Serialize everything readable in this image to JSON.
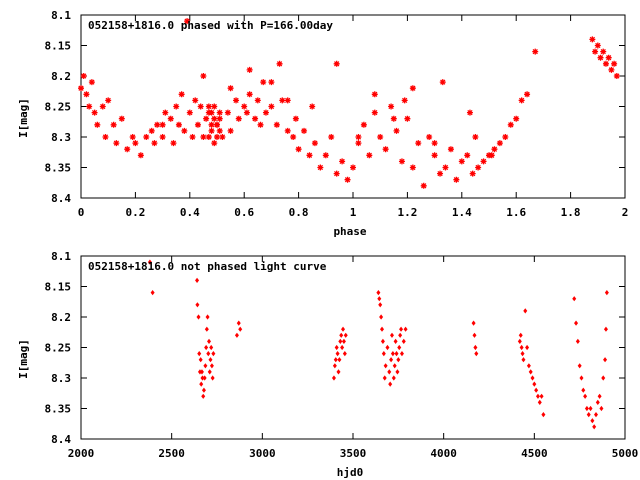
{
  "colors": {
    "marker": "#ff0000",
    "axis": "#000000",
    "background": "#ffffff"
  },
  "chart_data": [
    {
      "type": "scatter",
      "title": "052158+1816.0 phased with P=166.00day",
      "xlabel": "phase",
      "ylabel": "I[mag]",
      "xlim": [
        0,
        2
      ],
      "ylim": [
        8.1,
        8.4
      ],
      "y_inverted": true,
      "marker": "star",
      "xticks": [
        "0",
        "0.2",
        "0.4",
        "0.6",
        "0.8",
        "1",
        "1.2",
        "1.4",
        "1.6",
        "1.8",
        "2"
      ],
      "xtick_values": [
        0,
        0.2,
        0.4,
        0.6,
        0.8,
        1.0,
        1.2,
        1.4,
        1.6,
        1.8,
        2.0
      ],
      "yticks": [
        "8.1",
        "8.15",
        "8.2",
        "8.25",
        "8.3",
        "8.35",
        "8.4"
      ],
      "ytick_values": [
        8.1,
        8.15,
        8.2,
        8.25,
        8.3,
        8.35,
        8.4
      ],
      "x": [
        0.0,
        0.01,
        0.02,
        0.03,
        0.04,
        0.05,
        0.06,
        0.08,
        0.09,
        0.1,
        0.12,
        0.13,
        0.15,
        0.17,
        0.19,
        0.2,
        0.22,
        0.24,
        0.26,
        0.27,
        0.28,
        0.3,
        0.31,
        0.33,
        0.34,
        0.35,
        0.36,
        0.37,
        0.38,
        0.39,
        0.4,
        0.41,
        0.42,
        0.43,
        0.44,
        0.45,
        0.46,
        0.47,
        0.48,
        0.49,
        0.5,
        0.51,
        0.52,
        0.54,
        0.55,
        0.57,
        0.58,
        0.6,
        0.61,
        0.62,
        0.64,
        0.65,
        0.66,
        0.68,
        0.7,
        0.72,
        0.74,
        0.76,
        0.78,
        0.79,
        0.8,
        0.82,
        0.84,
        0.86,
        0.88,
        0.9,
        0.92,
        0.94,
        0.96,
        0.98,
        1.0,
        1.02,
        1.04,
        1.06,
        1.08,
        1.1,
        1.12,
        1.14,
        1.16,
        1.18,
        1.2,
        1.22,
        1.24,
        1.26,
        1.28,
        1.3,
        1.32,
        1.34,
        1.36,
        1.38,
        1.4,
        1.42,
        1.44,
        1.46,
        1.48,
        1.5,
        1.52,
        1.54,
        1.56,
        1.58,
        1.6,
        1.62,
        1.64,
        1.67,
        1.88,
        1.89,
        1.9,
        1.91,
        1.92,
        1.93,
        1.94,
        1.95,
        1.96,
        1.97,
        0.47,
        0.48,
        0.49,
        0.5,
        0.51,
        0.47,
        0.49,
        0.51,
        0.48,
        0.5,
        0.3,
        0.45,
        0.55,
        0.62,
        0.7,
        0.76,
        0.94,
        1.08,
        1.15,
        1.22,
        1.3,
        1.45,
        0.67,
        0.73,
        0.85,
        1.02,
        1.19,
        1.33,
        1.43,
        1.51
      ],
      "y": [
        8.22,
        8.2,
        8.23,
        8.25,
        8.21,
        8.26,
        8.28,
        8.25,
        8.3,
        8.24,
        8.28,
        8.31,
        8.27,
        8.32,
        8.3,
        8.31,
        8.33,
        8.3,
        8.29,
        8.31,
        8.28,
        8.3,
        8.26,
        8.27,
        8.31,
        8.25,
        8.28,
        8.23,
        8.29,
        8.11,
        8.26,
        8.3,
        8.24,
        8.28,
        8.25,
        8.3,
        8.27,
        8.26,
        8.29,
        8.25,
        8.28,
        8.27,
        8.3,
        8.26,
        8.29,
        8.24,
        8.27,
        8.25,
        8.26,
        8.23,
        8.27,
        8.24,
        8.28,
        8.26,
        8.25,
        8.28,
        8.24,
        8.29,
        8.3,
        8.27,
        8.32,
        8.29,
        8.33,
        8.31,
        8.35,
        8.33,
        8.3,
        8.36,
        8.34,
        8.37,
        8.35,
        8.31,
        8.28,
        8.33,
        8.26,
        8.3,
        8.32,
        8.25,
        8.29,
        8.34,
        8.27,
        8.35,
        8.31,
        8.38,
        8.3,
        8.33,
        8.36,
        8.35,
        8.32,
        8.37,
        8.34,
        8.33,
        8.36,
        8.35,
        8.34,
        8.33,
        8.32,
        8.31,
        8.3,
        8.28,
        8.27,
        8.24,
        8.23,
        8.16,
        8.14,
        8.16,
        8.15,
        8.17,
        8.16,
        8.18,
        8.17,
        8.19,
        8.18,
        8.2,
        8.25,
        8.26,
        8.27,
        8.28,
        8.29,
        8.3,
        8.31,
        8.26,
        8.28,
        8.3,
        8.28,
        8.2,
        8.22,
        8.19,
        8.21,
        8.24,
        8.18,
        8.23,
        8.27,
        8.22,
        8.31,
        8.3,
        8.21,
        8.18,
        8.25,
        8.3,
        8.24,
        8.21,
        8.26,
        8.33
      ]
    },
    {
      "type": "scatter",
      "title": "052158+1816.0 not phased light curve",
      "xlabel": "hjd0",
      "ylabel": "I[mag]",
      "xlim": [
        2000,
        5000
      ],
      "ylim": [
        8.1,
        8.4
      ],
      "y_inverted": true,
      "marker": "diamond",
      "xticks": [
        "2000",
        "2500",
        "3000",
        "3500",
        "4000",
        "4500",
        "5000"
      ],
      "xtick_values": [
        2000,
        2500,
        3000,
        3500,
        4000,
        4500,
        5000
      ],
      "yticks": [
        "8.1",
        "8.15",
        "8.2",
        "8.25",
        "8.3",
        "8.35",
        "8.4"
      ],
      "ytick_values": [
        8.1,
        8.15,
        8.2,
        8.25,
        8.3,
        8.35,
        8.4
      ],
      "x": [
        2380,
        2395,
        2640,
        2642,
        2648,
        2652,
        2656,
        2660,
        2663,
        2667,
        2670,
        2674,
        2678,
        2682,
        2686,
        2690,
        2694,
        2698,
        2702,
        2706,
        2710,
        2714,
        2718,
        2722,
        2726,
        2730,
        2860,
        2870,
        2878,
        3395,
        3400,
        3405,
        3410,
        3415,
        3420,
        3425,
        3430,
        3435,
        3440,
        3445,
        3450,
        3455,
        3460,
        3640,
        3645,
        3650,
        3655,
        3660,
        3665,
        3670,
        3675,
        3680,
        3690,
        3700,
        3705,
        3710,
        3715,
        3720,
        3725,
        3730,
        3735,
        3740,
        3745,
        3750,
        3755,
        3760,
        3765,
        3770,
        3780,
        3790,
        4165,
        4170,
        4175,
        4180,
        4420,
        4425,
        4430,
        4435,
        4440,
        4450,
        4460,
        4470,
        4480,
        4490,
        4500,
        4510,
        4520,
        4530,
        4540,
        4550,
        4720,
        4730,
        4740,
        4750,
        4760,
        4770,
        4780,
        4790,
        4800,
        4810,
        4820,
        4830,
        4840,
        4850,
        4860,
        4870,
        4880,
        4890,
        4895,
        4900
      ],
      "y": [
        8.11,
        8.16,
        8.14,
        8.18,
        8.2,
        8.26,
        8.29,
        8.27,
        8.31,
        8.29,
        8.3,
        8.33,
        8.32,
        8.3,
        8.28,
        8.25,
        8.22,
        8.2,
        8.26,
        8.24,
        8.29,
        8.27,
        8.25,
        8.28,
        8.3,
        8.26,
        8.23,
        8.21,
        8.22,
        8.3,
        8.28,
        8.27,
        8.25,
        8.26,
        8.29,
        8.27,
        8.24,
        8.23,
        8.25,
        8.22,
        8.24,
        8.26,
        8.23,
        8.16,
        8.17,
        8.18,
        8.2,
        8.22,
        8.24,
        8.26,
        8.3,
        8.28,
        8.25,
        8.29,
        8.31,
        8.27,
        8.23,
        8.26,
        8.3,
        8.28,
        8.24,
        8.26,
        8.29,
        8.27,
        8.25,
        8.23,
        8.22,
        8.26,
        8.24,
        8.22,
        8.21,
        8.23,
        8.25,
        8.26,
        8.24,
        8.23,
        8.25,
        8.26,
        8.27,
        8.19,
        8.25,
        8.28,
        8.29,
        8.3,
        8.31,
        8.32,
        8.33,
        8.34,
        8.33,
        8.36,
        8.17,
        8.21,
        8.24,
        8.28,
        8.3,
        8.32,
        8.33,
        8.35,
        8.36,
        8.35,
        8.37,
        8.38,
        8.36,
        8.34,
        8.33,
        8.35,
        8.3,
        8.27,
        8.22,
        8.16
      ]
    }
  ]
}
